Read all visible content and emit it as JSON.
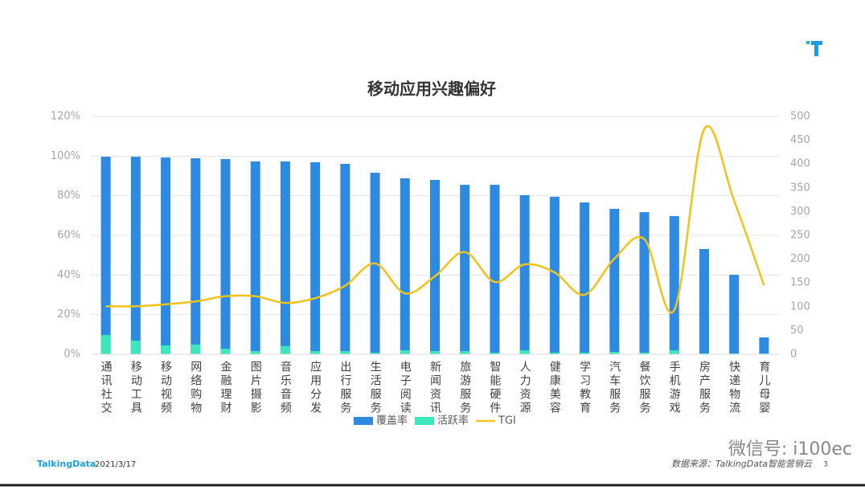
{
  "chart_data": {
    "type": "bar_line",
    "title": "移动应用兴趣偏好",
    "categories": [
      "通讯社交",
      "移动工具",
      "移动视频",
      "网络购物",
      "金融理财",
      "图片摄影",
      "音乐音频",
      "应用分发",
      "出行服务",
      "生活服务",
      "电子阅读",
      "新闻资讯",
      "旅游服务",
      "智能硬件",
      "人力资源",
      "健康美容",
      "学习教育",
      "汽车服务",
      "餐饮服务",
      "手机游戏",
      "房产服务",
      "快递物流",
      "育儿母婴"
    ],
    "series": [
      {
        "name": "覆盖率",
        "color": "#2e8ae0",
        "values": [
          99.7,
          99.7,
          99.3,
          98.9,
          98.5,
          97.3,
          97.3,
          96.9,
          96.1,
          91.6,
          88.8,
          88.0,
          85.5,
          85.5,
          80.3,
          79.5,
          76.6,
          73.4,
          71.7,
          69.7,
          53.1,
          40.1,
          8.5
        ]
      },
      {
        "name": "活跃率",
        "color": "#3de6bd",
        "values": [
          9.7,
          6.9,
          4.5,
          4.9,
          2.8,
          1.6,
          4.1,
          1.6,
          1.6,
          0.8,
          2.0,
          1.6,
          1.6,
          0.8,
          2.0,
          0.8,
          0.8,
          1.2,
          0.8,
          2.0,
          0.4,
          0.4,
          0.4
        ]
      },
      {
        "name": "TGI",
        "color": "#f2c21b",
        "axis": "y2",
        "values": [
          101,
          101,
          105,
          111,
          122,
          122,
          108,
          118,
          144,
          191,
          128,
          164,
          215,
          152,
          189,
          172,
          125,
          201,
          242,
          93,
          473,
          323,
          145
        ]
      }
    ],
    "ylim": [
      0,
      120
    ],
    "yticks": [
      {
        "value": 0,
        "label": "0%"
      },
      {
        "value": 20,
        "label": "20%"
      },
      {
        "value": 40,
        "label": "40%"
      },
      {
        "value": 60,
        "label": "60%"
      },
      {
        "value": 80,
        "label": "80%"
      },
      {
        "value": 100,
        "label": "100%"
      },
      {
        "value": 120,
        "label": "120%"
      }
    ],
    "y2lim": [
      0,
      500
    ],
    "y2ticks": [
      0,
      50,
      100,
      150,
      200,
      250,
      300,
      350,
      400,
      450,
      500
    ],
    "grid": true
  },
  "footer": {
    "brand": "TalkingData",
    "date": "2021/3/17",
    "source": "数据来源：TalkingData智能营销云",
    "page": "3",
    "watermark": "微信号: i100ec"
  }
}
